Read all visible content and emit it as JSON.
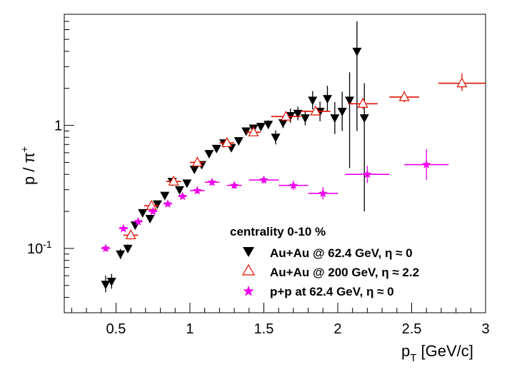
{
  "chart_data": {
    "type": "scatter",
    "title": "",
    "xlabel": {
      "main": "p",
      "sub": "T",
      "unit": " [GeV/c]"
    },
    "ylabel": {
      "main": "p / π",
      "sup": "+"
    },
    "xlim": [
      0.15,
      3.0
    ],
    "ylim": [
      0.03,
      8.0
    ],
    "yscale": "log",
    "x_ticks": [
      {
        "value": 0.5,
        "label": "0.5"
      },
      {
        "value": 1.0,
        "label": "1"
      },
      {
        "value": 1.5,
        "label": "1.5"
      },
      {
        "value": 2.0,
        "label": "2"
      },
      {
        "value": 2.5,
        "label": "2.5"
      },
      {
        "value": 3.0,
        "label": "3"
      }
    ],
    "y_ticks": [
      {
        "value": 0.1,
        "label": "10",
        "sup": "-1"
      },
      {
        "value": 1.0,
        "label": "1",
        "sup": ""
      }
    ],
    "legend_title": "centrality 0-10 %",
    "series": [
      {
        "name": "Au+Au @ 62.4 GeV,  η ≈ 0",
        "marker": "triangle-down-filled",
        "color": "#000000",
        "points": [
          {
            "x": 0.43,
            "y": 0.051,
            "ylo": 0.044,
            "yhi": 0.06,
            "xerr": 0
          },
          {
            "x": 0.47,
            "y": 0.054,
            "ylo": 0.047,
            "yhi": 0.062,
            "xerr": 0
          },
          {
            "x": 0.53,
            "y": 0.09,
            "ylo": 0.082,
            "yhi": 0.099,
            "xerr": 0
          },
          {
            "x": 0.58,
            "y": 0.1,
            "ylo": 0.093,
            "yhi": 0.108,
            "xerr": 0
          },
          {
            "x": 0.63,
            "y": 0.155,
            "ylo": 0.145,
            "yhi": 0.166,
            "xerr": 0
          },
          {
            "x": 0.68,
            "y": 0.195,
            "ylo": 0.183,
            "yhi": 0.208,
            "xerr": 0
          },
          {
            "x": 0.73,
            "y": 0.175,
            "ylo": 0.164,
            "yhi": 0.187,
            "xerr": 0
          },
          {
            "x": 0.78,
            "y": 0.23,
            "ylo": 0.216,
            "yhi": 0.245,
            "xerr": 0
          },
          {
            "x": 0.83,
            "y": 0.27,
            "ylo": 0.254,
            "yhi": 0.287,
            "xerr": 0
          },
          {
            "x": 0.88,
            "y": 0.35,
            "ylo": 0.33,
            "yhi": 0.371,
            "xerr": 0
          },
          {
            "x": 0.93,
            "y": 0.3,
            "ylo": 0.283,
            "yhi": 0.318,
            "xerr": 0
          },
          {
            "x": 0.98,
            "y": 0.34,
            "ylo": 0.321,
            "yhi": 0.36,
            "xerr": 0
          },
          {
            "x": 1.03,
            "y": 0.44,
            "ylo": 0.415,
            "yhi": 0.467,
            "xerr": 0
          },
          {
            "x": 1.08,
            "y": 0.48,
            "ylo": 0.453,
            "yhi": 0.509,
            "xerr": 0
          },
          {
            "x": 1.13,
            "y": 0.59,
            "ylo": 0.557,
            "yhi": 0.625,
            "xerr": 0
          },
          {
            "x": 1.18,
            "y": 0.65,
            "ylo": 0.613,
            "yhi": 0.689,
            "xerr": 0
          },
          {
            "x": 1.23,
            "y": 0.72,
            "ylo": 0.679,
            "yhi": 0.763,
            "xerr": 0
          },
          {
            "x": 1.28,
            "y": 0.66,
            "ylo": 0.622,
            "yhi": 0.7,
            "xerr": 0
          },
          {
            "x": 1.33,
            "y": 0.75,
            "ylo": 0.707,
            "yhi": 0.795,
            "xerr": 0
          },
          {
            "x": 1.38,
            "y": 0.9,
            "ylo": 0.849,
            "yhi": 0.954,
            "xerr": 0
          },
          {
            "x": 1.43,
            "y": 0.95,
            "ylo": 0.89,
            "yhi": 1.01,
            "xerr": 0
          },
          {
            "x": 1.48,
            "y": 0.98,
            "ylo": 0.91,
            "yhi": 1.05,
            "xerr": 0
          },
          {
            "x": 1.53,
            "y": 1.02,
            "ylo": 0.94,
            "yhi": 1.1,
            "xerr": 0
          },
          {
            "x": 1.58,
            "y": 0.8,
            "ylo": 0.7,
            "yhi": 0.91,
            "xerr": 0
          },
          {
            "x": 1.63,
            "y": 1.05,
            "ylo": 0.95,
            "yhi": 1.16,
            "xerr": 0
          },
          {
            "x": 1.68,
            "y": 1.2,
            "ylo": 1.05,
            "yhi": 1.37,
            "xerr": 0
          },
          {
            "x": 1.73,
            "y": 1.25,
            "ylo": 1.1,
            "yhi": 1.42,
            "xerr": 0
          },
          {
            "x": 1.78,
            "y": 1.15,
            "ylo": 1.0,
            "yhi": 1.32,
            "xerr": 0
          },
          {
            "x": 1.83,
            "y": 1.6,
            "ylo": 1.35,
            "yhi": 1.9,
            "xerr": 0
          },
          {
            "x": 1.88,
            "y": 1.3,
            "ylo": 1.08,
            "yhi": 1.56,
            "xerr": 0
          },
          {
            "x": 1.93,
            "y": 1.65,
            "ylo": 1.3,
            "yhi": 2.1,
            "xerr": 0
          },
          {
            "x": 1.98,
            "y": 1.15,
            "ylo": 0.85,
            "yhi": 1.55,
            "xerr": 0
          },
          {
            "x": 2.03,
            "y": 1.3,
            "ylo": 0.9,
            "yhi": 1.88,
            "xerr": 0
          },
          {
            "x": 2.08,
            "y": 1.6,
            "ylo": 0.45,
            "yhi": 2.7,
            "xerr": 0
          },
          {
            "x": 2.13,
            "y": 4.0,
            "ylo": 0.9,
            "yhi": 7.0,
            "xerr": 0
          },
          {
            "x": 2.18,
            "y": 1.15,
            "ylo": 0.2,
            "yhi": 2.2,
            "xerr": 0
          }
        ]
      },
      {
        "name": "Au+Au @ 200 GeV,  η ≈ 2.2",
        "marker": "triangle-up-open",
        "color": "#dd1100",
        "points": [
          {
            "x": 0.6,
            "y": 0.128,
            "ylo": 0.118,
            "yhi": 0.138,
            "xerr": 0.05
          },
          {
            "x": 0.74,
            "y": 0.222,
            "ylo": 0.208,
            "yhi": 0.237,
            "xerr": 0.05
          },
          {
            "x": 0.89,
            "y": 0.35,
            "ylo": 0.33,
            "yhi": 0.372,
            "xerr": 0.05
          },
          {
            "x": 1.05,
            "y": 0.5,
            "ylo": 0.472,
            "yhi": 0.53,
            "xerr": 0.05
          },
          {
            "x": 1.25,
            "y": 0.72,
            "ylo": 0.685,
            "yhi": 0.757,
            "xerr": 0.05
          },
          {
            "x": 1.43,
            "y": 0.88,
            "ylo": 0.83,
            "yhi": 0.933,
            "xerr": 0.05
          },
          {
            "x": 1.65,
            "y": 1.18,
            "ylo": 1.1,
            "yhi": 1.26,
            "xerr": 0.1
          },
          {
            "x": 1.85,
            "y": 1.3,
            "ylo": 1.2,
            "yhi": 1.4,
            "xerr": 0.1
          },
          {
            "x": 2.17,
            "y": 1.5,
            "ylo": 1.35,
            "yhi": 1.67,
            "xerr": 0.1
          },
          {
            "x": 2.45,
            "y": 1.7,
            "ylo": 1.54,
            "yhi": 1.9,
            "xerr": 0.1
          },
          {
            "x": 2.84,
            "y": 2.2,
            "ylo": 1.9,
            "yhi": 2.65,
            "xerr": 0.16
          }
        ]
      },
      {
        "name": "p+p at 62.4 GeV,  η ≈ 0",
        "marker": "star",
        "color": "#ee00ee",
        "points": [
          {
            "x": 0.43,
            "y": 0.1,
            "ylo": 0.095,
            "yhi": 0.106,
            "xerr": 0.03
          },
          {
            "x": 0.55,
            "y": 0.145,
            "ylo": 0.138,
            "yhi": 0.152,
            "xerr": 0.03
          },
          {
            "x": 0.65,
            "y": 0.165,
            "ylo": 0.157,
            "yhi": 0.173,
            "xerr": 0.03
          },
          {
            "x": 0.75,
            "y": 0.2,
            "ylo": 0.19,
            "yhi": 0.21,
            "xerr": 0.03
          },
          {
            "x": 0.85,
            "y": 0.23,
            "ylo": 0.219,
            "yhi": 0.242,
            "xerr": 0.03
          },
          {
            "x": 0.95,
            "y": 0.265,
            "ylo": 0.252,
            "yhi": 0.279,
            "xerr": 0.03
          },
          {
            "x": 1.05,
            "y": 0.295,
            "ylo": 0.28,
            "yhi": 0.311,
            "xerr": 0.05
          },
          {
            "x": 1.15,
            "y": 0.345,
            "ylo": 0.326,
            "yhi": 0.366,
            "xerr": 0.05
          },
          {
            "x": 1.3,
            "y": 0.325,
            "ylo": 0.306,
            "yhi": 0.345,
            "xerr": 0.05
          },
          {
            "x": 1.5,
            "y": 0.36,
            "ylo": 0.337,
            "yhi": 0.385,
            "xerr": 0.1
          },
          {
            "x": 1.7,
            "y": 0.325,
            "ylo": 0.298,
            "yhi": 0.355,
            "xerr": 0.1
          },
          {
            "x": 1.9,
            "y": 0.28,
            "ylo": 0.25,
            "yhi": 0.315,
            "xerr": 0.1
          },
          {
            "x": 2.2,
            "y": 0.4,
            "ylo": 0.34,
            "yhi": 0.47,
            "xerr": 0.15
          },
          {
            "x": 2.6,
            "y": 0.48,
            "ylo": 0.36,
            "yhi": 0.64,
            "xerr": 0.15
          }
        ]
      }
    ]
  }
}
